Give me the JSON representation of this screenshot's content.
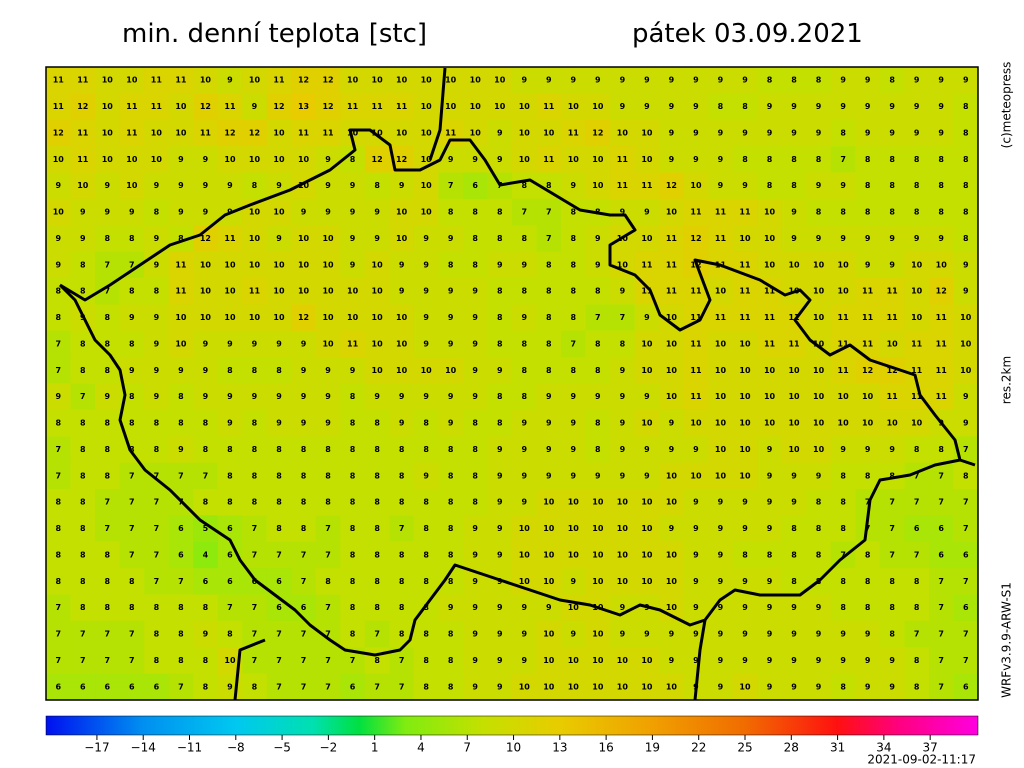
{
  "header": {
    "title": "min. denní teplota [stc]",
    "date": "pátek 03.09.2021"
  },
  "side_labels": {
    "copyright": "(c)meteopress",
    "resolution": "res.2km",
    "model": "WRFv3.9.9-ARW-S1"
  },
  "timestamp": "2021-09-02-11:17",
  "grid": {
    "values": [
      [
        11,
        11,
        10,
        10,
        11,
        11,
        10,
        9,
        10,
        11,
        12,
        12,
        10,
        10,
        10,
        10,
        10,
        10,
        10,
        9,
        9,
        9,
        9,
        9,
        9,
        9,
        9,
        9,
        9,
        8,
        8,
        8,
        9,
        9,
        8,
        9,
        9,
        9
      ],
      [
        11,
        12,
        10,
        11,
        11,
        10,
        12,
        11,
        9,
        12,
        13,
        12,
        11,
        11,
        11,
        10,
        10,
        10,
        10,
        10,
        11,
        10,
        10,
        9,
        9,
        9,
        9,
        8,
        8,
        9,
        9,
        9,
        9,
        9,
        9,
        9,
        9,
        8
      ],
      [
        12,
        11,
        10,
        11,
        10,
        10,
        11,
        12,
        12,
        10,
        11,
        11,
        10,
        10,
        10,
        10,
        11,
        10,
        9,
        10,
        10,
        11,
        12,
        10,
        10,
        9,
        9,
        9,
        9,
        9,
        9,
        9,
        8,
        9,
        9,
        9,
        9,
        8
      ],
      [
        10,
        11,
        10,
        10,
        10,
        9,
        9,
        10,
        10,
        10,
        10,
        9,
        8,
        12,
        12,
        10,
        9,
        9,
        9,
        10,
        11,
        10,
        10,
        11,
        10,
        9,
        9,
        9,
        8,
        8,
        8,
        8,
        7,
        8,
        8,
        8,
        8,
        8
      ],
      [
        9,
        10,
        9,
        10,
        9,
        9,
        9,
        9,
        8,
        9,
        10,
        9,
        9,
        8,
        9,
        10,
        7,
        6,
        7,
        8,
        8,
        9,
        10,
        11,
        11,
        12,
        10,
        9,
        9,
        8,
        8,
        9,
        9,
        8,
        8,
        8,
        8,
        8
      ],
      [
        10,
        9,
        9,
        9,
        8,
        9,
        9,
        9,
        10,
        10,
        9,
        9,
        9,
        9,
        10,
        10,
        8,
        8,
        8,
        7,
        7,
        8,
        8,
        9,
        9,
        10,
        11,
        11,
        11,
        10,
        9,
        8,
        8,
        8,
        8,
        8,
        8,
        8
      ],
      [
        9,
        9,
        8,
        8,
        9,
        8,
        12,
        11,
        10,
        9,
        10,
        10,
        9,
        9,
        10,
        9,
        9,
        8,
        8,
        8,
        7,
        8,
        9,
        10,
        10,
        11,
        12,
        11,
        10,
        10,
        9,
        9,
        9,
        9,
        9,
        9,
        9,
        8
      ],
      [
        9,
        8,
        7,
        7,
        9,
        11,
        10,
        10,
        10,
        10,
        10,
        10,
        9,
        10,
        9,
        9,
        8,
        8,
        9,
        9,
        8,
        8,
        9,
        10,
        11,
        11,
        12,
        11,
        11,
        10,
        10,
        10,
        10,
        9,
        9,
        10,
        10,
        9
      ],
      [
        8,
        8,
        7,
        8,
        8,
        11,
        10,
        10,
        11,
        10,
        10,
        10,
        10,
        10,
        9,
        9,
        9,
        9,
        8,
        8,
        8,
        8,
        8,
        9,
        11,
        11,
        11,
        10,
        11,
        11,
        10,
        10,
        10,
        11,
        11,
        10,
        12,
        9
      ],
      [
        8,
        9,
        8,
        9,
        9,
        10,
        10,
        10,
        10,
        10,
        12,
        10,
        10,
        10,
        10,
        9,
        9,
        9,
        8,
        9,
        8,
        8,
        7,
        7,
        9,
        10,
        11,
        11,
        11,
        11,
        11,
        10,
        11,
        11,
        11,
        10,
        11,
        10
      ],
      [
        7,
        8,
        8,
        8,
        9,
        10,
        9,
        9,
        9,
        9,
        9,
        10,
        11,
        10,
        10,
        9,
        9,
        9,
        8,
        8,
        8,
        7,
        8,
        8,
        10,
        10,
        11,
        10,
        10,
        11,
        11,
        10,
        11,
        11,
        10,
        11,
        11,
        10
      ],
      [
        7,
        8,
        8,
        9,
        9,
        9,
        9,
        8,
        8,
        8,
        9,
        9,
        9,
        10,
        10,
        10,
        10,
        9,
        9,
        8,
        8,
        8,
        8,
        9,
        10,
        10,
        11,
        10,
        10,
        10,
        10,
        10,
        11,
        12,
        12,
        11,
        11,
        10
      ],
      [
        9,
        7,
        9,
        8,
        9,
        8,
        9,
        9,
        9,
        9,
        9,
        9,
        8,
        9,
        9,
        9,
        9,
        9,
        8,
        8,
        9,
        9,
        9,
        9,
        9,
        10,
        11,
        10,
        10,
        10,
        10,
        10,
        10,
        10,
        11,
        11,
        11,
        9
      ],
      [
        8,
        8,
        8,
        8,
        8,
        8,
        8,
        9,
        8,
        9,
        9,
        9,
        8,
        8,
        9,
        8,
        9,
        8,
        8,
        9,
        9,
        9,
        8,
        9,
        10,
        9,
        10,
        10,
        10,
        10,
        10,
        10,
        10,
        10,
        10,
        10,
        9,
        9
      ],
      [
        7,
        8,
        8,
        8,
        8,
        9,
        8,
        8,
        8,
        8,
        8,
        8,
        8,
        8,
        8,
        8,
        8,
        8,
        9,
        9,
        9,
        9,
        8,
        9,
        9,
        9,
        9,
        10,
        10,
        9,
        10,
        10,
        9,
        9,
        9,
        8,
        8,
        7
      ],
      [
        7,
        8,
        8,
        7,
        7,
        7,
        7,
        8,
        8,
        8,
        8,
        8,
        8,
        8,
        8,
        9,
        8,
        8,
        9,
        9,
        9,
        9,
        9,
        9,
        9,
        10,
        10,
        10,
        10,
        9,
        9,
        9,
        8,
        8,
        8,
        7,
        7,
        8
      ],
      [
        8,
        8,
        7,
        7,
        7,
        7,
        8,
        8,
        8,
        8,
        8,
        8,
        8,
        8,
        8,
        8,
        8,
        8,
        9,
        9,
        10,
        10,
        10,
        10,
        10,
        10,
        9,
        9,
        9,
        9,
        9,
        8,
        8,
        7,
        7,
        7,
        7,
        7
      ],
      [
        8,
        8,
        7,
        7,
        7,
        6,
        5,
        6,
        7,
        8,
        8,
        7,
        8,
        8,
        7,
        8,
        8,
        9,
        9,
        10,
        10,
        10,
        10,
        10,
        10,
        9,
        9,
        9,
        9,
        9,
        8,
        8,
        8,
        7,
        7,
        6,
        6,
        7
      ],
      [
        8,
        8,
        8,
        7,
        7,
        6,
        4,
        6,
        7,
        7,
        7,
        7,
        8,
        8,
        8,
        8,
        8,
        9,
        9,
        10,
        10,
        10,
        10,
        10,
        10,
        10,
        9,
        9,
        8,
        8,
        8,
        8,
        7,
        8,
        7,
        7,
        6,
        6
      ],
      [
        8,
        8,
        8,
        8,
        7,
        7,
        6,
        6,
        6,
        6,
        7,
        8,
        8,
        8,
        8,
        8,
        8,
        9,
        9,
        10,
        10,
        9,
        10,
        10,
        10,
        10,
        9,
        9,
        9,
        9,
        8,
        8,
        8,
        8,
        8,
        8,
        7,
        7
      ],
      [
        7,
        8,
        8,
        8,
        8,
        8,
        8,
        7,
        7,
        6,
        6,
        7,
        8,
        8,
        8,
        8,
        9,
        9,
        9,
        9,
        9,
        10,
        10,
        9,
        9,
        10,
        9,
        9,
        9,
        9,
        9,
        9,
        8,
        8,
        8,
        8,
        7,
        6
      ],
      [
        7,
        7,
        7,
        7,
        8,
        8,
        9,
        8,
        7,
        7,
        7,
        7,
        8,
        7,
        8,
        8,
        8,
        9,
        9,
        9,
        10,
        9,
        10,
        9,
        9,
        9,
        9,
        9,
        9,
        9,
        9,
        9,
        9,
        9,
        8,
        7,
        7,
        7
      ],
      [
        7,
        7,
        7,
        7,
        8,
        8,
        8,
        10,
        7,
        7,
        7,
        7,
        7,
        8,
        7,
        8,
        8,
        9,
        9,
        9,
        10,
        10,
        10,
        10,
        10,
        9,
        9,
        9,
        9,
        9,
        9,
        9,
        9,
        9,
        9,
        8,
        7,
        7
      ],
      [
        6,
        6,
        6,
        6,
        6,
        7,
        8,
        9,
        8,
        7,
        7,
        7,
        6,
        7,
        7,
        8,
        8,
        9,
        9,
        10,
        10,
        10,
        10,
        10,
        10,
        10,
        9,
        9,
        10,
        9,
        9,
        9,
        8,
        9,
        9,
        8,
        7,
        6
      ]
    ]
  },
  "colorbar": {
    "lim": [
      -20.3,
      40.1
    ],
    "ticks": [
      {
        "value": -17,
        "label": "−17"
      },
      {
        "value": -14,
        "label": "−14"
      },
      {
        "value": -11,
        "label": "−11"
      },
      {
        "value": -8,
        "label": "−8"
      },
      {
        "value": -5,
        "label": "−5"
      },
      {
        "value": -2,
        "label": "−2"
      },
      1,
      4,
      7,
      10,
      13,
      16,
      19,
      22,
      25,
      28,
      31,
      34,
      37
    ],
    "stops": [
      [
        -20.3,
        "#0010f0"
      ],
      [
        -14,
        "#0090f0"
      ],
      [
        -8,
        "#00c8f0"
      ],
      [
        -3,
        "#00e0b0"
      ],
      [
        0,
        "#00e040"
      ],
      [
        3,
        "#80ec10"
      ],
      [
        8,
        "#c4e000"
      ],
      [
        13,
        "#e8cc00"
      ],
      [
        19,
        "#f0a000"
      ],
      [
        25,
        "#f06c00"
      ],
      [
        31,
        "#ff1010"
      ],
      [
        35,
        "#ff0080"
      ],
      [
        40.1,
        "#ff00e0"
      ]
    ]
  }
}
